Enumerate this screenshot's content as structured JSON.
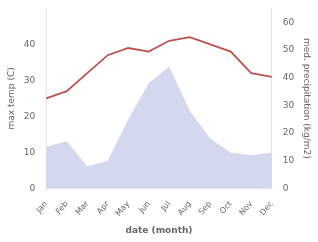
{
  "chart_data": {
    "type": "line",
    "xlabel": "date (month)",
    "ylabel": "max temp (C)",
    "y2label": "med. precipitation (kg/m2)",
    "categories": [
      "Jan",
      "Feb",
      "Mar",
      "Apr",
      "May",
      "Jun",
      "Jul",
      "Aug",
      "Sep",
      "Oct",
      "Nov",
      "Dec"
    ],
    "series": [
      {
        "type": "area",
        "color": "#b0b8e0",
        "axis": "y2",
        "values": [
          15,
          17,
          8,
          10,
          25,
          38,
          44,
          28,
          18,
          13,
          12,
          13
        ]
      },
      {
        "type": "line",
        "color": "#c0504d",
        "axis": "y",
        "values": [
          25,
          27,
          32,
          37,
          39,
          38,
          41,
          42,
          40,
          38,
          32,
          31
        ]
      }
    ],
    "ylim": [
      0,
      50
    ],
    "yticks": [
      0,
      10,
      20,
      30,
      40
    ],
    "y2lim": [
      0,
      65
    ],
    "y2ticks": [
      0,
      10,
      20,
      30,
      40,
      50,
      60
    ],
    "grid": false
  }
}
